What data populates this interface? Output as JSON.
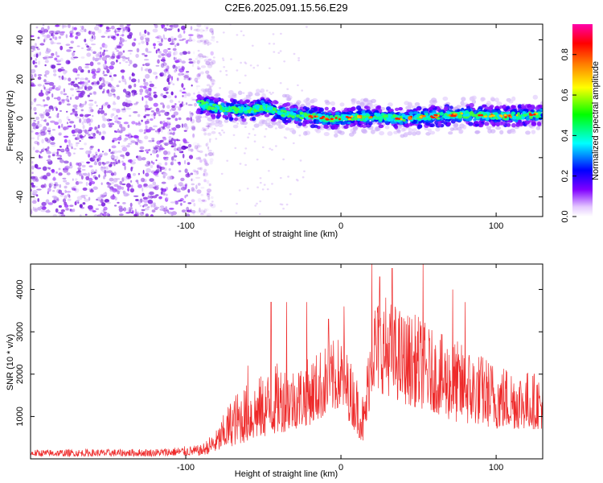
{
  "figure": {
    "title": "C2E6.2025.091.15.56.E29"
  },
  "chart_data": [
    {
      "type": "heatmap",
      "title": "C2E6.2025.091.15.56.E29",
      "xlabel": "Height of straight line (km)",
      "ylabel": "Frequency (Hz)",
      "xlim": [
        -200,
        130
      ],
      "ylim": [
        -50,
        48
      ],
      "x_ticks": [
        -100,
        0,
        100
      ],
      "x_tick_labels": [
        "-100",
        "0",
        "100"
      ],
      "y_ticks": [
        -40,
        -20,
        0,
        20,
        40
      ],
      "y_tick_labels": [
        "-40",
        "-20",
        "0",
        "20",
        "40"
      ],
      "colorbar": {
        "label": "Normalized spectral amplitude",
        "range": [
          0,
          0.95
        ],
        "ticks": [
          0,
          0.2,
          0.4,
          0.6,
          0.8
        ],
        "tick_labels": [
          "0.0",
          "0.2",
          "0.4",
          "0.6",
          "0.8"
        ],
        "colors": [
          "#ffffff",
          "#d9b3ff",
          "#8000ff",
          "#0000ff",
          "#00ffff",
          "#00ff00",
          "#ffff00",
          "#ff8000",
          "#ff0000",
          "#ff00aa"
        ]
      },
      "noise_region_x": [
        -200,
        -90
      ],
      "signal_ridge": {
        "x": [
          -92,
          -80,
          -60,
          -50,
          -40,
          -20,
          -10,
          0,
          20,
          40,
          60,
          80,
          100,
          130
        ],
        "frequency": [
          8,
          5,
          4,
          6,
          3,
          1,
          0,
          0,
          1,
          0,
          1,
          2,
          1,
          2
        ]
      },
      "grid": false
    },
    {
      "type": "line",
      "xlabel": "Height of straight line (km)",
      "ylabel": "SNR (10 * v/v)",
      "xlim": [
        -200,
        130
      ],
      "ylim": [
        0,
        4600
      ],
      "x_ticks": [
        -100,
        0,
        100
      ],
      "x_tick_labels": [
        "-100",
        "0",
        "100"
      ],
      "y_ticks": [
        1000,
        2000,
        3000,
        4000
      ],
      "y_tick_labels": [
        "1000",
        "2000",
        "3000",
        "4000"
      ],
      "color": "#ee2a2a",
      "envelope": {
        "x": [
          -200,
          -120,
          -90,
          -80,
          -70,
          -60,
          -50,
          -40,
          -30,
          -20,
          -10,
          0,
          10,
          15,
          20,
          30,
          40,
          50,
          60,
          70,
          80,
          90,
          100,
          110,
          120,
          130
        ],
        "low": [
          60,
          60,
          80,
          150,
          300,
          400,
          500,
          600,
          700,
          800,
          1000,
          1200,
          600,
          300,
          1600,
          1500,
          1300,
          1200,
          1100,
          900,
          800,
          800,
          700,
          700,
          700,
          700
        ],
        "high": [
          220,
          240,
          330,
          700,
          1500,
          1800,
          2000,
          2300,
          2200,
          2400,
          2700,
          2900,
          2000,
          1500,
          3800,
          3900,
          3500,
          3400,
          3000,
          2900,
          2700,
          2500,
          2300,
          2200,
          2100,
          2000
        ]
      },
      "peaks": {
        "x": [
          -60,
          -45,
          -35,
          -22,
          -8,
          2,
          20,
          25,
          33,
          53,
          72,
          80
        ],
        "y": [
          2200,
          3700,
          3700,
          3700,
          3300,
          3600,
          4600,
          4300,
          4500,
          4600,
          4000,
          3700
        ]
      },
      "grid": false
    }
  ]
}
